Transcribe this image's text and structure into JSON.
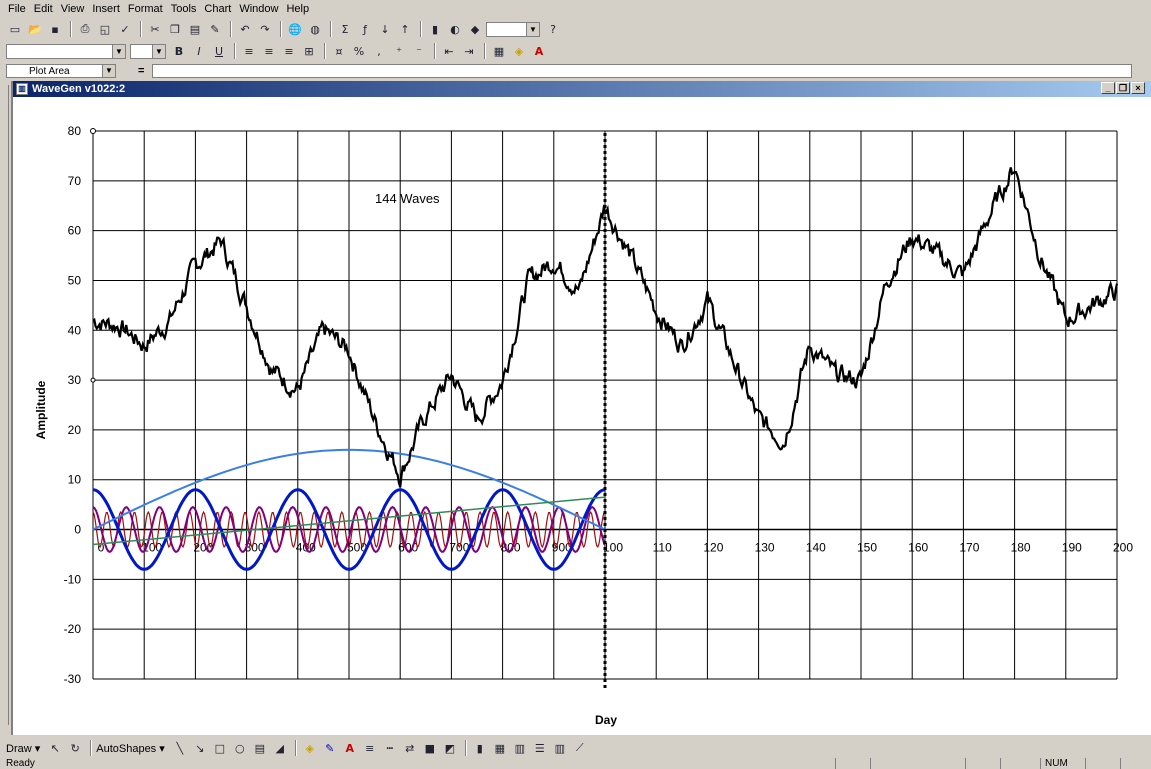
{
  "menu": [
    "File",
    "Edit",
    "View",
    "Insert",
    "Format",
    "Tools",
    "Chart",
    "Window",
    "Help"
  ],
  "formula_bar": {
    "name_box": "Plot Area",
    "equals": "="
  },
  "window": {
    "title": "WaveGen v1022:2"
  },
  "format_buttons": {
    "bold": "B",
    "italic": "I",
    "underline": "U",
    "percent": "%",
    "comma": ","
  },
  "draw_toolbar": {
    "draw_label": "Draw ▾",
    "autoshapes_label": "AutoShapes ▾"
  },
  "status": {
    "text": "Ready",
    "num": "NUM"
  },
  "colors": {
    "title_blue": "#0a246a",
    "series_main": "#000000",
    "wave_light": "#3a7fe6",
    "wave_dark": "#0018c8",
    "wave_purple": "#800080",
    "wave_red": "#a01010",
    "trend": "#2e8b57"
  },
  "chart_data": {
    "type": "line",
    "annotation": "144 Waves",
    "ylabel": "Amplitude",
    "xlabel": "Day",
    "ylim": [
      -30,
      80
    ],
    "xlim": [
      0,
      200
    ],
    "y_ticks": [
      -30,
      -20,
      -10,
      0,
      10,
      20,
      30,
      40,
      50,
      60,
      70,
      80
    ],
    "x_ticks_left": [
      "0",
      "100",
      "200",
      "300",
      "400",
      "500",
      "600",
      "700",
      "800",
      "900",
      "100"
    ],
    "x_ticks_right": [
      "110",
      "120",
      "130",
      "140",
      "150",
      "160",
      "170",
      "180",
      "190",
      "200"
    ],
    "cursor_x": 100,
    "series": [
      {
        "key": "main",
        "x": [
          0,
          5,
          10,
          15,
          20,
          25,
          30,
          35,
          40,
          45,
          50,
          55,
          60,
          65,
          70,
          75,
          80,
          85,
          90,
          95,
          100,
          105,
          110,
          115,
          120,
          125,
          130,
          135,
          140,
          145,
          150,
          155,
          160,
          165,
          170,
          175,
          180,
          185,
          190,
          195,
          200
        ],
        "values": [
          42,
          41,
          37,
          42,
          53,
          58,
          45,
          32,
          28,
          40,
          36,
          22,
          11,
          23,
          31,
          22,
          30,
          50,
          54,
          48,
          65,
          55,
          44,
          37,
          46,
          34,
          22,
          18,
          37,
          31,
          30,
          50,
          59,
          55,
          51,
          63,
          73,
          55,
          42,
          45,
          48
        ]
      },
      {
        "key": "wave_light",
        "amplitude": 16,
        "period": 200,
        "phase_day": 50
      },
      {
        "key": "wave_dark",
        "amplitude": 8,
        "period": 20,
        "phase_day": 0
      },
      {
        "key": "wave_purple",
        "amplitude": 4.5,
        "period": 6.5,
        "phase_day": 0
      },
      {
        "key": "wave_red",
        "amplitude": 3.5,
        "period": 2.7,
        "phase_day": 0
      },
      {
        "key": "trend",
        "x": [
          0,
          100
        ],
        "values": [
          -3,
          6.5
        ]
      }
    ]
  }
}
